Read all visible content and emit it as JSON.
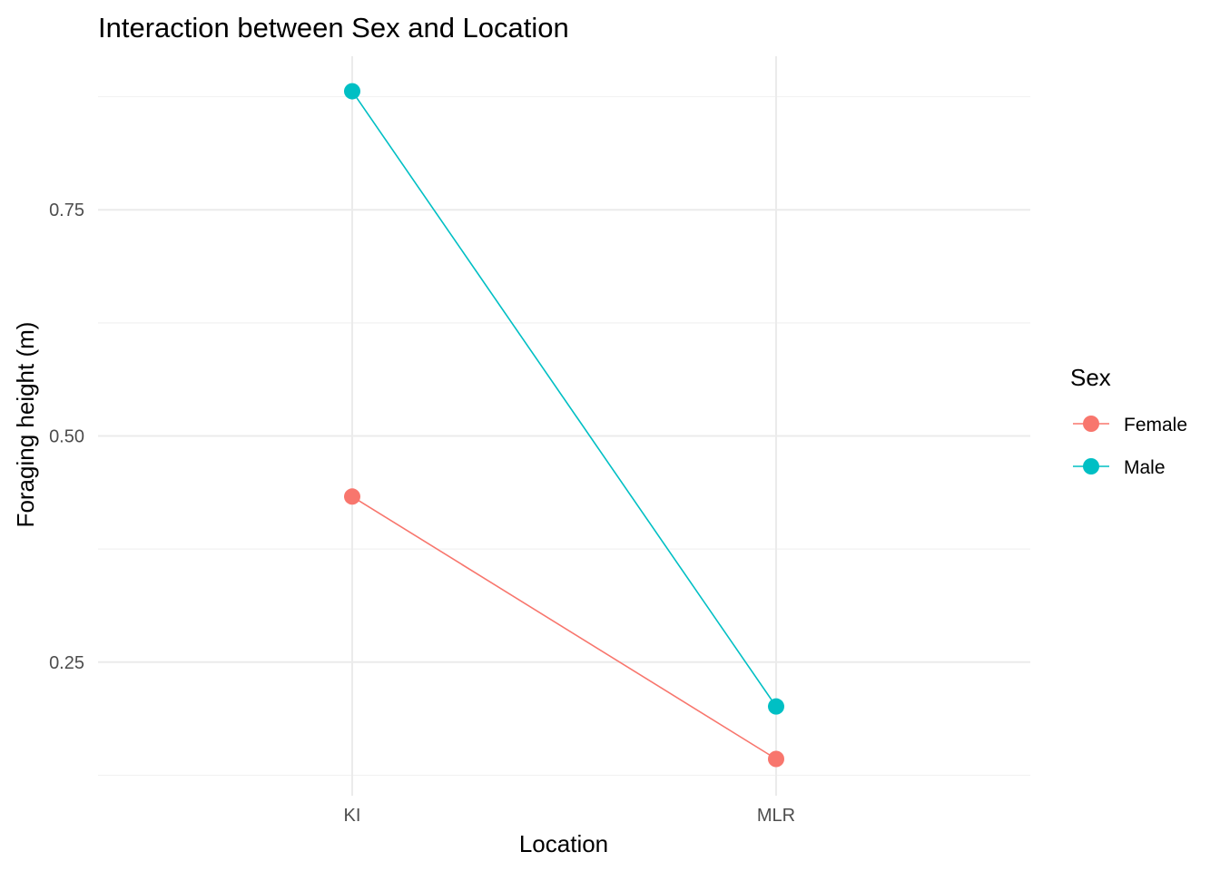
{
  "chart_data": {
    "type": "line",
    "title": "Interaction between Sex and Location",
    "xlabel": "Location",
    "ylabel": "Foraging height (m)",
    "categories": [
      "KI",
      "MLR"
    ],
    "ylim": [
      0.1,
      0.9
    ],
    "yticks": [
      0.25,
      0.5,
      0.75
    ],
    "ytick_labels": [
      "0.25",
      "0.50",
      "0.75"
    ],
    "grid": true,
    "legend": {
      "title": "Sex",
      "placement": "right"
    },
    "series": [
      {
        "name": "Female",
        "color": "#F8766D",
        "values": [
          0.433,
          0.143
        ]
      },
      {
        "name": "Male",
        "color": "#00BFC4",
        "values": [
          0.881,
          0.201
        ]
      }
    ]
  }
}
